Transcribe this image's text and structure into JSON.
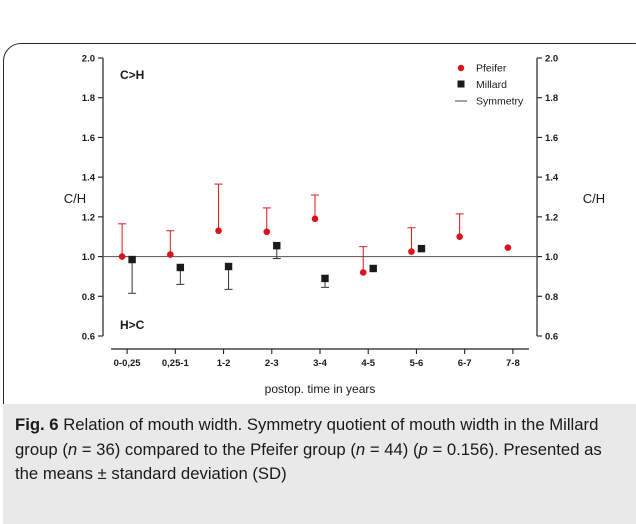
{
  "chart_data": {
    "type": "scatter",
    "categories": [
      "0-0,25",
      "0,25-1",
      "1-2",
      "2-3",
      "3-4",
      "4-5",
      "5-6",
      "6-7",
      "7-8"
    ],
    "ylim": [
      0.6,
      2.0
    ],
    "yticks": [
      0.6,
      0.8,
      1.0,
      1.2,
      1.4,
      1.6,
      1.8,
      2.0
    ],
    "ytick_labels": [
      "0.6",
      "0.8",
      "1.0",
      "1.2",
      "1.4",
      "1.6",
      "1.8",
      "2.0"
    ],
    "ylabel_left": "C/H",
    "ylabel_right": "C/H",
    "xlabel": "postop. time in years",
    "annotations": {
      "top": "C>H",
      "bottom": "H>C"
    },
    "reference_line": {
      "name": "Symmetry",
      "y": 1.0
    },
    "legend_position": "top-right",
    "series": [
      {
        "name": "Pfeifer",
        "marker": "circle",
        "color": "#d9141b",
        "means": [
          1.0,
          1.01,
          1.13,
          1.125,
          1.19,
          0.92,
          1.025,
          1.1,
          1.045
        ],
        "sd": [
          0.165,
          0.12,
          0.235,
          0.12,
          0.12,
          0.13,
          0.12,
          0.115,
          null
        ],
        "sd_direction": "up"
      },
      {
        "name": "Millard",
        "marker": "square",
        "color": "#1a1a1a",
        "means": [
          0.985,
          0.945,
          0.95,
          1.055,
          0.89,
          0.94,
          1.04,
          null,
          null
        ],
        "sd": [
          0.17,
          0.085,
          0.115,
          0.065,
          0.045,
          null,
          null,
          null,
          null
        ],
        "sd_direction": "down"
      }
    ]
  },
  "caption": {
    "label": "Fig. 6",
    "seg1": " Relation of mouth width. Symmetry quotient of mouth width in the Millard group (",
    "n1": "n",
    "seg2": " = 36) compared to the Pfeifer group (",
    "n2": "n",
    "seg3": " = 44) (",
    "p": "p",
    "seg4": " = 0.156). Presented as the means ± standard deviation (SD)"
  }
}
